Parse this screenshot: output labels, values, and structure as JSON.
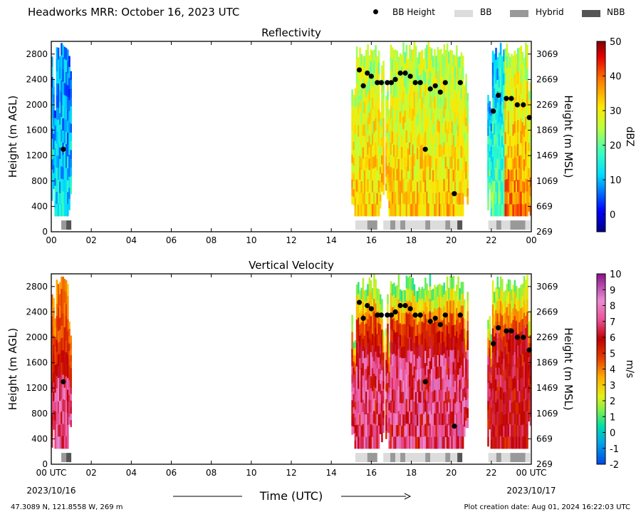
{
  "figure_title": "Headworks MRR:  October 16, 2023 UTC",
  "legend": [
    {
      "label": "BB Height",
      "kind": "dot",
      "color": "#000000"
    },
    {
      "label": "BB",
      "kind": "box",
      "color": "#dcdcdc"
    },
    {
      "label": "Hybrid",
      "kind": "box",
      "color": "#999999"
    },
    {
      "label": "NBB",
      "kind": "box",
      "color": "#555555"
    }
  ],
  "x_axis": {
    "label": "Time (UTC)",
    "ticks": [
      "00 UTC",
      "02",
      "04",
      "06",
      "08",
      "10",
      "12",
      "14",
      "16",
      "18",
      "20",
      "22",
      "00 UTC"
    ],
    "tick_labels_top_panel": [
      "00",
      "02",
      "04",
      "06",
      "08",
      "10",
      "12",
      "14",
      "16",
      "18",
      "20",
      "22",
      "00"
    ],
    "start_date": "2023/10/16",
    "end_date": "2023/10/17"
  },
  "footer": {
    "location": "47.3089 N, 121.8558 W, 269 m",
    "creation": "Plot creation date: Aug 01, 2024 16:22:03 UTC"
  },
  "chart_data": [
    {
      "type": "heatmap",
      "title": "Reflectivity",
      "ylabel": "Height (m AGL)",
      "y2label": "Height (m MSL)",
      "ylim": [
        0,
        3000
      ],
      "yticks": [
        0,
        400,
        800,
        1200,
        1600,
        2000,
        2400,
        2800
      ],
      "y2ticks": [
        269,
        669,
        1069,
        1469,
        1869,
        2269,
        2669,
        3069
      ],
      "xlim": [
        0,
        24
      ],
      "colorbar": {
        "label": "dBZ",
        "range": [
          -5,
          50
        ],
        "ticks": [
          0,
          10,
          20,
          30,
          40,
          50
        ]
      },
      "data_periods_hours": [
        [
          0.0,
          1.0
        ],
        [
          15.0,
          16.6
        ],
        [
          16.7,
          20.8
        ],
        [
          21.8,
          24.0
        ]
      ]
    },
    {
      "type": "heatmap",
      "title": "Vertical Velocity",
      "ylabel": "Height (m AGL)",
      "y2label": "Height (m MSL)",
      "ylim": [
        0,
        3000
      ],
      "yticks": [
        0,
        400,
        800,
        1200,
        1600,
        2000,
        2400,
        2800
      ],
      "y2ticks": [
        269,
        669,
        1069,
        1469,
        1869,
        2269,
        2669,
        3069
      ],
      "xlim": [
        0,
        24
      ],
      "colorbar": {
        "label": "m/s",
        "range": [
          -2,
          10
        ],
        "ticks": [
          -2,
          -1,
          0,
          1,
          2,
          3,
          4,
          5,
          6,
          7,
          8,
          9,
          10
        ]
      },
      "data_periods_hours": [
        [
          0.0,
          1.0
        ],
        [
          15.0,
          16.6
        ],
        [
          16.7,
          20.8
        ],
        [
          21.8,
          24.0
        ]
      ]
    }
  ],
  "bb_height_points": [
    {
      "x": 0.6,
      "y": 1300
    },
    {
      "x": 15.4,
      "y": 2550
    },
    {
      "x": 15.6,
      "y": 2300
    },
    {
      "x": 15.8,
      "y": 2500
    },
    {
      "x": 16.0,
      "y": 2450
    },
    {
      "x": 16.3,
      "y": 2350
    },
    {
      "x": 16.5,
      "y": 2350
    },
    {
      "x": 16.8,
      "y": 2350
    },
    {
      "x": 17.0,
      "y": 2350
    },
    {
      "x": 17.2,
      "y": 2400
    },
    {
      "x": 17.45,
      "y": 2500
    },
    {
      "x": 17.7,
      "y": 2500
    },
    {
      "x": 17.95,
      "y": 2450
    },
    {
      "x": 18.2,
      "y": 2350
    },
    {
      "x": 18.45,
      "y": 2350
    },
    {
      "x": 18.7,
      "y": 1300
    },
    {
      "x": 18.95,
      "y": 2250
    },
    {
      "x": 19.2,
      "y": 2300
    },
    {
      "x": 19.45,
      "y": 2200
    },
    {
      "x": 19.7,
      "y": 2350
    },
    {
      "x": 20.15,
      "y": 600
    },
    {
      "x": 20.45,
      "y": 2350
    },
    {
      "x": 22.1,
      "y": 1900
    },
    {
      "x": 22.35,
      "y": 2150
    },
    {
      "x": 22.75,
      "y": 2100
    },
    {
      "x": 23.0,
      "y": 2100
    },
    {
      "x": 23.3,
      "y": 2000
    },
    {
      "x": 23.6,
      "y": 2000
    },
    {
      "x": 23.9,
      "y": 1800
    }
  ],
  "bb_type_segments": [
    {
      "start": 0.5,
      "end": 0.75,
      "type": "Hybrid"
    },
    {
      "start": 0.75,
      "end": 1.0,
      "type": "NBB"
    },
    {
      "start": 15.2,
      "end": 15.8,
      "type": "BB"
    },
    {
      "start": 15.8,
      "end": 16.3,
      "type": "Hybrid"
    },
    {
      "start": 16.6,
      "end": 16.95,
      "type": "BB"
    },
    {
      "start": 16.95,
      "end": 17.2,
      "type": "Hybrid"
    },
    {
      "start": 17.2,
      "end": 17.45,
      "type": "BB"
    },
    {
      "start": 17.45,
      "end": 17.7,
      "type": "Hybrid"
    },
    {
      "start": 17.7,
      "end": 18.7,
      "type": "BB"
    },
    {
      "start": 18.7,
      "end": 18.95,
      "type": "Hybrid"
    },
    {
      "start": 18.95,
      "end": 19.7,
      "type": "BB"
    },
    {
      "start": 19.7,
      "end": 19.95,
      "type": "Hybrid"
    },
    {
      "start": 19.95,
      "end": 20.3,
      "type": "BB"
    },
    {
      "start": 20.3,
      "end": 20.55,
      "type": "NBB"
    },
    {
      "start": 21.85,
      "end": 22.25,
      "type": "BB"
    },
    {
      "start": 22.25,
      "end": 22.5,
      "type": "Hybrid"
    },
    {
      "start": 22.5,
      "end": 22.95,
      "type": "BB"
    },
    {
      "start": 22.95,
      "end": 23.7,
      "type": "Hybrid"
    },
    {
      "start": 23.7,
      "end": 23.95,
      "type": "BB"
    }
  ]
}
